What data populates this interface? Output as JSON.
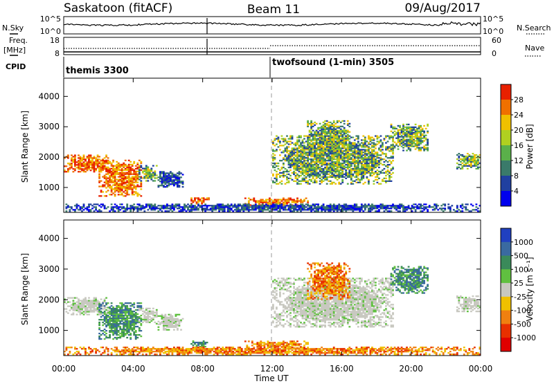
{
  "chart_data": {
    "type": "heatmap",
    "header": {
      "station": "Saskatoon (fitACF)",
      "beam": "Beam 11",
      "date": "09/Aug/2017"
    },
    "top_panel": {
      "left_label_1": "N.Sky",
      "left_label_2a": "Freq.",
      "left_label_2b": "[MHz]",
      "left_label_3": "CPID",
      "right_label_1": "N.Search",
      "right_label_2": "Nave",
      "sky_ticks": [
        "10^5",
        "10^0"
      ],
      "search_ticks": [
        "10^5",
        "10^0"
      ],
      "freq_ticks": [
        "18",
        "8"
      ],
      "nave_ticks": [
        "60",
        "0"
      ],
      "cpid_1": "themis 3300",
      "cpid_2": "twofsound (1-min) 3505"
    },
    "xaxis": {
      "label": "Time UT",
      "ticks": [
        "00:00",
        "04:00",
        "08:00",
        "12:00",
        "16:00",
        "20:00",
        "00:00"
      ],
      "range_hours": [
        0,
        24
      ]
    },
    "yaxis": {
      "label": "Slant Range [km]",
      "ticks": [
        "1000",
        "2000",
        "3000",
        "4000"
      ],
      "range_km": [
        180,
        4600
      ]
    },
    "power_panel": {
      "colorbar_label": "Power [dB]",
      "colorbar_ticks": [
        "28",
        "24",
        "20",
        "16",
        "12",
        "8",
        "4"
      ],
      "colors": [
        "#0000ee",
        "#2040a0",
        "#3a7a6a",
        "#5ab04a",
        "#b0d020",
        "#f0c000",
        "#f07000",
        "#e82000"
      ]
    },
    "velocity_panel": {
      "colorbar_label": "Velocity [m s⁻¹]",
      "colorbar_ticks": [
        "1000",
        "500",
        "100",
        "25",
        "-25",
        "-100",
        "-500",
        "-1000"
      ],
      "colors": [
        "#2040c0",
        "#3a6aa0",
        "#3a8a5a",
        "#60c040",
        "#c8c8c0",
        "#f0c000",
        "#f08010",
        "#e83000",
        "#e00000"
      ]
    },
    "echo_regions": [
      {
        "t0": 0.0,
        "t1": 2.6,
        "r0": 1500,
        "r1": 2050,
        "power": "strong",
        "velocity": "near-zero"
      },
      {
        "t0": 2.0,
        "t1": 4.5,
        "r0": 700,
        "r1": 1900,
        "power": "strong",
        "velocity": "positive"
      },
      {
        "t0": 4.3,
        "t1": 5.3,
        "r0": 1200,
        "r1": 1700,
        "power": "medium",
        "velocity": "near-zero"
      },
      {
        "t0": 5.4,
        "t1": 6.8,
        "r0": 1000,
        "r1": 1500,
        "power": "weak",
        "velocity": "near-zero"
      },
      {
        "t0": 7.3,
        "t1": 8.3,
        "r0": 450,
        "r1": 650,
        "power": "strong",
        "velocity": "positive"
      },
      {
        "t0": 10.4,
        "t1": 14.0,
        "r0": 400,
        "r1": 650,
        "power": "strong",
        "velocity": "negative"
      },
      {
        "t0": 12.0,
        "t1": 19.0,
        "r0": 1100,
        "r1": 2700,
        "power": "medium",
        "velocity": "near-zero"
      },
      {
        "t0": 14.0,
        "t1": 16.5,
        "r0": 2000,
        "r1": 3200,
        "power": "medium",
        "velocity": "negative"
      },
      {
        "t0": 18.8,
        "t1": 21.0,
        "r0": 2200,
        "r1": 3100,
        "power": "medium",
        "velocity": "positive"
      },
      {
        "t0": 22.6,
        "t1": 24.0,
        "r0": 1600,
        "r1": 2100,
        "power": "medium",
        "velocity": "near-zero"
      },
      {
        "t0": 0.0,
        "t1": 24.0,
        "r0": 200,
        "r1": 450,
        "power": "weak",
        "velocity": "negative"
      }
    ]
  }
}
